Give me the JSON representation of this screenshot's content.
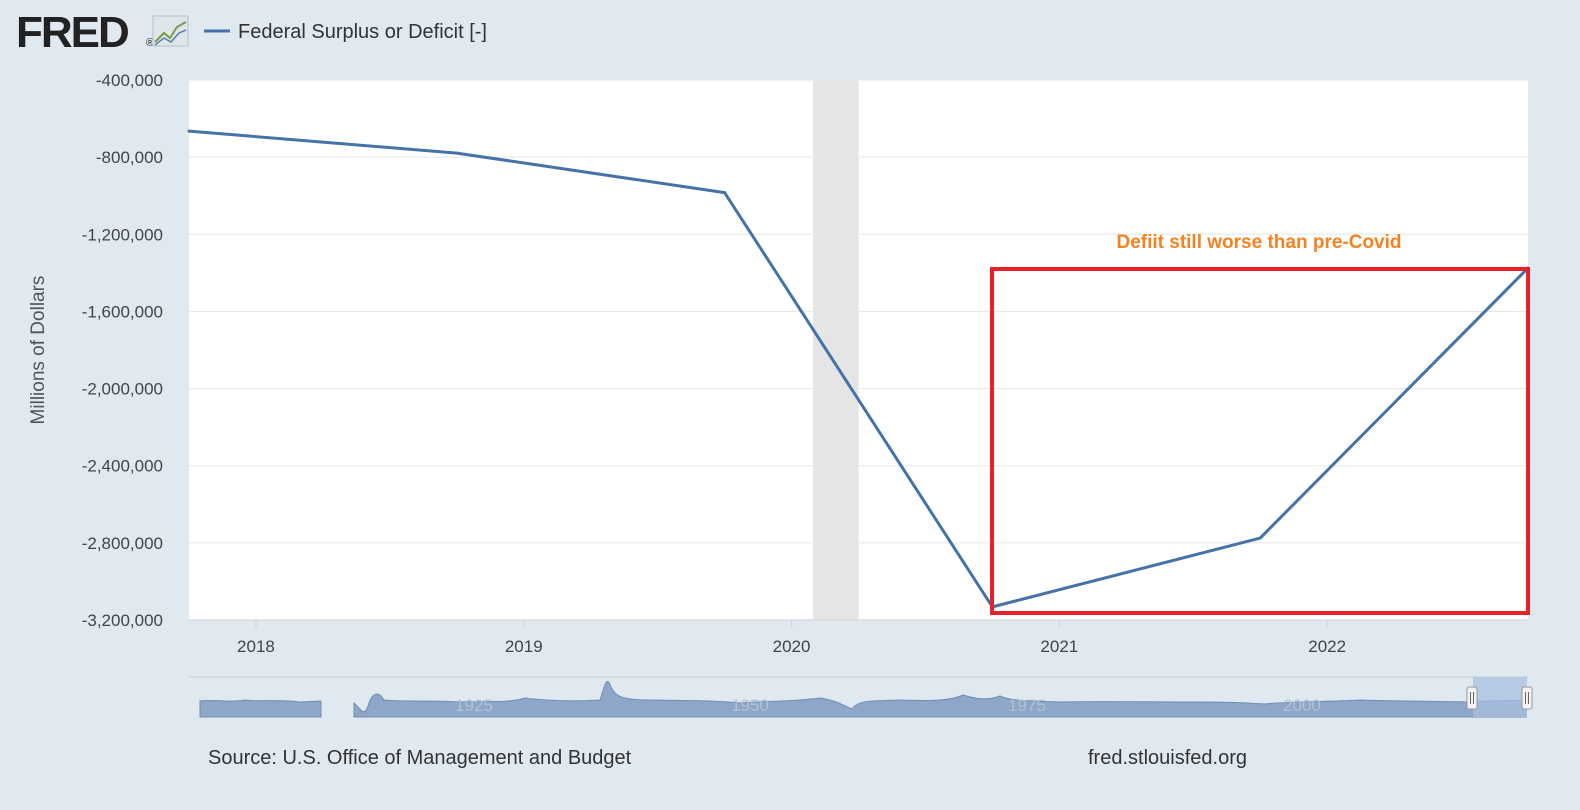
{
  "logo": {
    "text": "FRED",
    "mark": "®",
    "icon": "chart-line-icon"
  },
  "legend": {
    "label": "Federal Surplus or Deficit [-]",
    "color": "#4572a7"
  },
  "annotation": {
    "text": "Defiit still worse than pre-Covid",
    "text_color": "#f58220",
    "box_color": "#e8202a"
  },
  "recession": {
    "start": 2020.08,
    "end": 2020.25,
    "color": "#e5e5e5"
  },
  "navigator": {
    "ticks": [
      "1925",
      "1950",
      "1975",
      "2000"
    ]
  },
  "footer": {
    "source": "Source: U.S. Office of Management and Budget",
    "site": "fred.stlouisfed.org"
  },
  "chart_data": {
    "type": "line",
    "title": "",
    "xlabel": "",
    "ylabel": "Millions of Dollars",
    "xlim": [
      2017.75,
      2022.75
    ],
    "ylim": [
      -3200000,
      -400000
    ],
    "xticks": [
      2018,
      2019,
      2020,
      2021,
      2022
    ],
    "yticks": [
      -400000,
      -800000,
      -1200000,
      -1600000,
      -2000000,
      -2400000,
      -2800000,
      -3200000
    ],
    "ytick_labels": [
      "-400,000",
      "-800,000",
      "-1,200,000",
      "-1,600,000",
      "-2,000,000",
      "-2,400,000",
      "-2,800,000",
      "-3,200,000"
    ],
    "grid": true,
    "series": [
      {
        "name": "Federal Surplus or Deficit [-]",
        "color": "#4572a7",
        "points": [
          {
            "x": 2017.75,
            "y": -665000
          },
          {
            "x": 2018.75,
            "y": -779000
          },
          {
            "x": 2019.75,
            "y": -984000
          },
          {
            "x": 2020.75,
            "y": -3132000
          },
          {
            "x": 2021.75,
            "y": -2775000
          },
          {
            "x": 2022.75,
            "y": -1375000
          }
        ]
      }
    ]
  }
}
